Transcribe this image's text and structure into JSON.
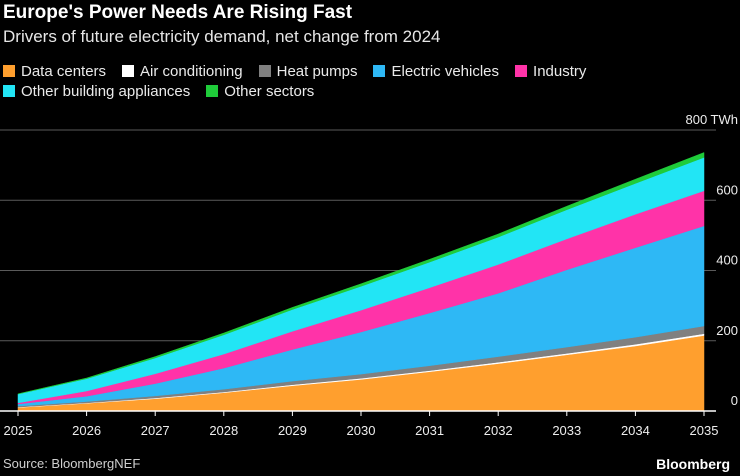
{
  "title": "Europe's Power Needs Are Rising Fast",
  "subtitle": "Drivers of future electricity demand, net change from 2024",
  "source": "Source: BloombergNEF",
  "brand": "Bloomberg",
  "chart_data": {
    "type": "area",
    "stacked": true,
    "title": "Europe's Power Needs Are Rising Fast",
    "subtitle": "Drivers of future electricity demand, net change from 2024",
    "xlabel": "",
    "ylabel": "",
    "y_unit": "TWh",
    "ylim": [
      0,
      800
    ],
    "yticks": [
      0,
      200,
      400,
      600,
      800
    ],
    "ytick_labels": [
      "0",
      "200",
      "400",
      "600",
      "800 TWh"
    ],
    "x": [
      "2025",
      "2026",
      "2027",
      "2028",
      "2029",
      "2030",
      "2031",
      "2032",
      "2033",
      "2034",
      "2035"
    ],
    "grid": true,
    "legend_position": "top",
    "series": [
      {
        "name": "Data centers",
        "color": "#ff9f2e",
        "values": [
          10,
          22,
          35,
          52,
          72,
          90,
          112,
          135,
          160,
          185,
          215
        ]
      },
      {
        "name": "Air conditioning",
        "color": "#ffffff",
        "values": [
          1,
          1,
          2,
          2,
          3,
          3,
          3,
          4,
          4,
          5,
          5
        ]
      },
      {
        "name": "Heat pumps",
        "color": "#808080",
        "values": [
          3,
          4,
          6,
          8,
          10,
          12,
          14,
          16,
          18,
          20,
          22
        ]
      },
      {
        "name": "Electric vehicles",
        "color": "#2eb8f5",
        "values": [
          6,
          15,
          35,
          60,
          90,
          120,
          150,
          180,
          220,
          255,
          285
        ]
      },
      {
        "name": "Industry",
        "color": "#ff33a8",
        "values": [
          3,
          15,
          28,
          40,
          52,
          62,
          72,
          82,
          88,
          95,
          100
        ]
      },
      {
        "name": "Other building appliances",
        "color": "#22e5f5",
        "values": [
          25,
          35,
          45,
          55,
          62,
          68,
          73,
          78,
          83,
          88,
          95
        ]
      },
      {
        "name": "Other sectors",
        "color": "#1fcc3a",
        "values": [
          1,
          2,
          4,
          5,
          6,
          7,
          8,
          9,
          10,
          12,
          14
        ]
      }
    ]
  }
}
